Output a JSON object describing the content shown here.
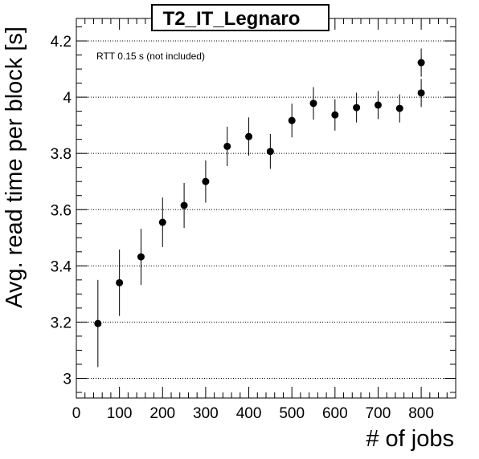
{
  "chart_data": {
    "type": "scatter",
    "title": "T2_IT_Legnaro",
    "xlabel": "# of jobs",
    "ylabel": "Avg. read time per block [s]",
    "annotation": "RTT 0.15 s (not included)",
    "xlim": [
      0,
      880
    ],
    "ylim": [
      2.93,
      4.28
    ],
    "x_ticks": [
      0,
      100,
      200,
      300,
      400,
      500,
      600,
      700,
      800
    ],
    "y_ticks": [
      3,
      3.2,
      3.4,
      3.6,
      3.8,
      4,
      4.2
    ],
    "y_tick_labels": [
      "3",
      "3.2",
      "3.4",
      "3.6",
      "3.8",
      "4",
      "4.2"
    ],
    "grid": "horizontal-dotted",
    "points": [
      {
        "x": 50,
        "y": 3.195,
        "err": 0.155
      },
      {
        "x": 100,
        "y": 3.34,
        "err": 0.118
      },
      {
        "x": 150,
        "y": 3.432,
        "err": 0.1
      },
      {
        "x": 200,
        "y": 3.555,
        "err": 0.088
      },
      {
        "x": 250,
        "y": 3.615,
        "err": 0.08
      },
      {
        "x": 300,
        "y": 3.7,
        "err": 0.075
      },
      {
        "x": 350,
        "y": 3.825,
        "err": 0.07
      },
      {
        "x": 400,
        "y": 3.86,
        "err": 0.068
      },
      {
        "x": 450,
        "y": 3.807,
        "err": 0.062
      },
      {
        "x": 500,
        "y": 3.917,
        "err": 0.06
      },
      {
        "x": 550,
        "y": 3.978,
        "err": 0.058
      },
      {
        "x": 600,
        "y": 3.937,
        "err": 0.056
      },
      {
        "x": 650,
        "y": 3.963,
        "err": 0.053
      },
      {
        "x": 700,
        "y": 3.972,
        "err": 0.05
      },
      {
        "x": 750,
        "y": 3.96,
        "err": 0.05
      },
      {
        "x": 800,
        "y": 4.015,
        "err": 0.05
      },
      {
        "x": 800,
        "y": 4.123,
        "err": 0.05
      }
    ]
  }
}
